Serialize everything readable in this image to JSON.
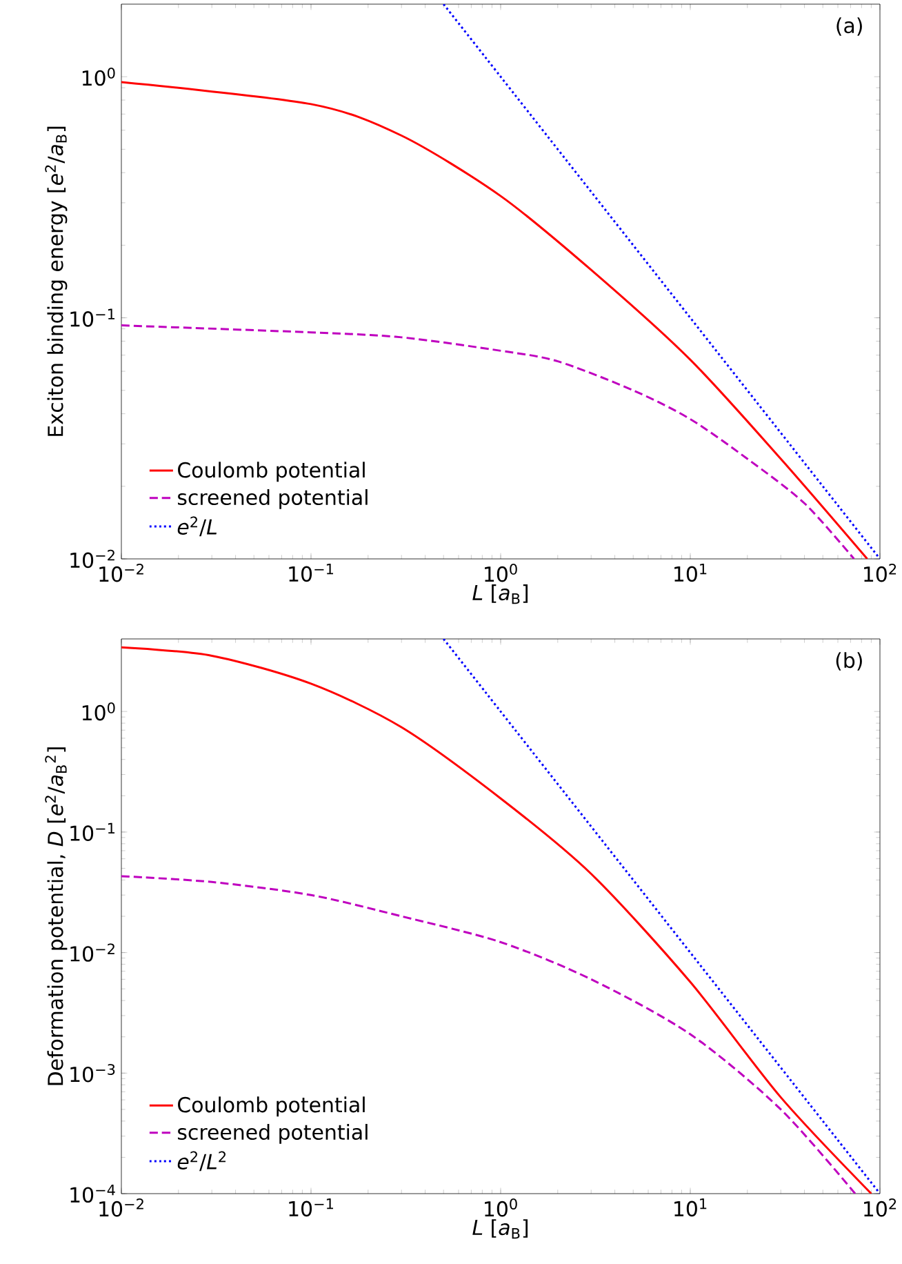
{
  "chart_data": [
    {
      "type": "line",
      "xlabel": "*L* [*a*$_{B}$]",
      "ylabel": "Exciton binding energy [*e*$^{2}$/*a*$_{B}$]",
      "annotations": [
        "(a)"
      ],
      "log": "xy",
      "legend": "bottom left",
      "xlim": [
        0.01,
        100
      ],
      "ylim": [
        0.01,
        2
      ],
      "xticks": [
        {
          "value": 0.01,
          "label": "10$^{−2}$"
        },
        {
          "value": 0.1,
          "label": "10$^{−1}$"
        },
        {
          "value": 1,
          "label": "10$^{0}$"
        },
        {
          "value": 10,
          "label": "10$^{1}$"
        },
        {
          "value": 100,
          "label": "10$^{2}$"
        }
      ],
      "yticks": [
        {
          "value": 0.01,
          "label": "10$^{−2}$"
        },
        {
          "value": 0.1,
          "label": "10$^{−1}$"
        },
        {
          "value": 1,
          "label": "10$^{0}$"
        }
      ],
      "series": [
        {
          "name": "Coulomb potential",
          "color": "#ff0000",
          "line_style": "solid",
          "x": [
            0.01,
            0.1,
            0.3,
            1,
            3,
            10,
            30,
            85.7
          ],
          "values": [
            0.95,
            0.77,
            0.57,
            0.32,
            0.158,
            0.067,
            0.026,
            0.01
          ]
        },
        {
          "name": "screened potential",
          "color": "#bf00bf",
          "line_style": "dashed",
          "x": [
            0.01,
            0.1,
            0.3,
            1,
            2,
            5,
            10,
            20,
            40,
            73
          ],
          "values": [
            0.093,
            0.087,
            0.083,
            0.073,
            0.066,
            0.05,
            0.038,
            0.026,
            0.017,
            0.01
          ]
        },
        {
          "name": "*e*$^{2}$/*L*",
          "color": "#0000ff",
          "line_style": "dotted",
          "x": [
            0.5,
            100
          ],
          "values": [
            2,
            0.01
          ]
        }
      ]
    },
    {
      "type": "line",
      "xlabel": "*L* [*a*$_{B}$]",
      "ylabel": "Deformation potential, *D* [*e*$^{2}$/*a*$_{B}$$^{2}$]",
      "annotations": [
        "(b)"
      ],
      "log": "xy",
      "legend": "bottom left",
      "xlim": [
        0.01,
        100
      ],
      "ylim": [
        0.0001,
        4
      ],
      "xticks": [
        {
          "value": 0.01,
          "label": "10$^{−2}$"
        },
        {
          "value": 0.1,
          "label": "10$^{−1}$"
        },
        {
          "value": 1,
          "label": "10$^{0}$"
        },
        {
          "value": 10,
          "label": "10$^{1}$"
        },
        {
          "value": 100,
          "label": "10$^{2}$"
        }
      ],
      "yticks": [
        {
          "value": 0.0001,
          "label": "10$^{−4}$"
        },
        {
          "value": 0.001,
          "label": "10$^{−3}$"
        },
        {
          "value": 0.01,
          "label": "10$^{−2}$"
        },
        {
          "value": 0.1,
          "label": "10$^{−1}$"
        },
        {
          "value": 1,
          "label": "10$^{0}$"
        }
      ],
      "series": [
        {
          "name": "Coulomb potential",
          "color": "#ff0000",
          "line_style": "solid",
          "x": [
            0.01,
            0.03,
            0.1,
            0.3,
            1,
            3,
            10,
            30,
            90
          ],
          "values": [
            3.4,
            2.9,
            1.7,
            0.74,
            0.19,
            0.045,
            0.0057,
            0.00063,
            0.0001
          ]
        },
        {
          "name": "screened potential",
          "color": "#bf00bf",
          "line_style": "dashed",
          "x": [
            0.01,
            0.03,
            0.1,
            0.3,
            1,
            3,
            10,
            30,
            74
          ],
          "values": [
            0.043,
            0.0385,
            0.03,
            0.02,
            0.0122,
            0.006,
            0.0021,
            0.0005,
            0.0001
          ]
        },
        {
          "name": "*e*$^{2}$/*L*$^{2}$",
          "color": "#0000ff",
          "line_style": "dotted",
          "x": [
            0.5,
            100
          ],
          "values": [
            4,
            0.0001
          ]
        }
      ]
    }
  ]
}
